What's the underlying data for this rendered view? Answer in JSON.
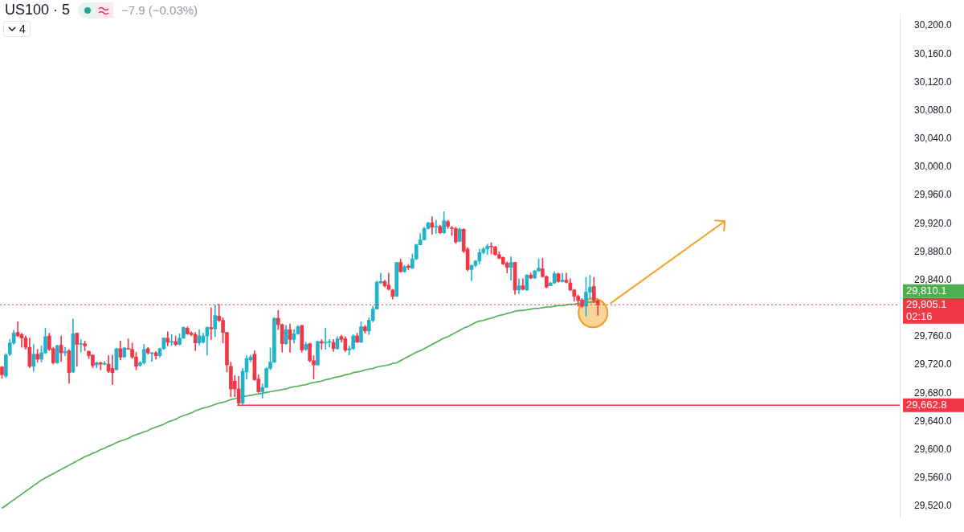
{
  "chart_data": {
    "type": "candlestick",
    "title": "US100 · 5",
    "categories": [
      null,
      null,
      null,
      null,
      null,
      null,
      null,
      null,
      null,
      null,
      null,
      null,
      null,
      null,
      null,
      null,
      null,
      null,
      null,
      null,
      null,
      null,
      null,
      null,
      null,
      null,
      null,
      null,
      null,
      null,
      null,
      null,
      null,
      null,
      null,
      null,
      null,
      null,
      null,
      null,
      null,
      null,
      null,
      null,
      null,
      null,
      null,
      null,
      null,
      null,
      null,
      null,
      null,
      null,
      null,
      null,
      null,
      null,
      null,
      null,
      null,
      null,
      null,
      null,
      null,
      null,
      null,
      null,
      null,
      null,
      null,
      null,
      null,
      null,
      null,
      null,
      null,
      null,
      null,
      null,
      null,
      null,
      null,
      null,
      null,
      null,
      null,
      null,
      null,
      null,
      null,
      null,
      null,
      null,
      null,
      null,
      null,
      null,
      null,
      null,
      null,
      null,
      null,
      null,
      null,
      null,
      null,
      null,
      null,
      null,
      null,
      null,
      null,
      null,
      null,
      null,
      null,
      null,
      null,
      null,
      null,
      null,
      null,
      null,
      null,
      null,
      null,
      null,
      null,
      null,
      null,
      null,
      null,
      null,
      null,
      null,
      null,
      null,
      null,
      null,
      null,
      null,
      null,
      null,
      null,
      null,
      null,
      null,
      null,
      null,
      null,
      null,
      null,
      null,
      null,
      null,
      null,
      null,
      null,
      null,
      null,
      null,
      null,
      null,
      null,
      null,
      null,
      null,
      null,
      null,
      null,
      null,
      null,
      null,
      null,
      null,
      null,
      null,
      null,
      null,
      null,
      null,
      null,
      null,
      null,
      null,
      null,
      null,
      null,
      null,
      null,
      null,
      null,
      null,
      null,
      null,
      null,
      null,
      null,
      null,
      null,
      null,
      null,
      null,
      null,
      null,
      null,
      null,
      null,
      null,
      null,
      null,
      null,
      null,
      null,
      null,
      null,
      null,
      null,
      null,
      null,
      null,
      null,
      null,
      null,
      null,
      null,
      null
    ],
    "series": [
      {
        "ohlc": [
          [
            29717,
            29718,
            29701,
            29706
          ],
          [
            29704,
            29736,
            29702,
            29734
          ],
          [
            29735,
            29756,
            29733,
            29751
          ],
          [
            29751,
            29769,
            29749,
            29765
          ],
          [
            29766,
            29781,
            29760,
            29761
          ],
          [
            29763,
            29765,
            29745,
            29758
          ],
          [
            29758,
            29761,
            29742,
            29745
          ],
          [
            29745,
            29758,
            29716,
            29718
          ],
          [
            29718,
            29749,
            29711,
            29735
          ],
          [
            29735,
            29742,
            29724,
            29728
          ],
          [
            29728,
            29747,
            29724,
            29737
          ],
          [
            29737,
            29772,
            29736,
            29760
          ],
          [
            29761,
            29765,
            29740,
            29742
          ],
          [
            29743,
            29745,
            29721,
            29723
          ],
          [
            29723,
            29748,
            29722,
            29747
          ],
          [
            29748,
            29761,
            29725,
            29737
          ],
          [
            29737,
            29745,
            29733,
            29739
          ],
          [
            29740,
            29742,
            29694,
            29709
          ],
          [
            29710,
            29785,
            29709,
            29764
          ],
          [
            29765,
            29765,
            29718,
            29749
          ],
          [
            29749,
            29756,
            29738,
            29750
          ],
          [
            29750,
            29754,
            29740,
            29747
          ],
          [
            29739,
            29740,
            29729,
            29733
          ],
          [
            29734,
            29734,
            29716,
            29719
          ],
          [
            29720,
            29724,
            29716,
            29723
          ],
          [
            29723,
            29724,
            29713,
            29721
          ],
          [
            29721,
            29725,
            29720,
            29722
          ],
          [
            29721,
            29733,
            29709,
            29711
          ],
          [
            29715,
            29734,
            29692,
            29709
          ],
          [
            29713,
            29744,
            29713,
            29743
          ],
          [
            29743,
            29754,
            29727,
            29731
          ],
          [
            29731,
            29745,
            29731,
            29744
          ],
          [
            29743,
            29757,
            29742,
            29742
          ],
          [
            29742,
            29751,
            29729,
            29731
          ],
          [
            29731,
            29738,
            29713,
            29718
          ],
          [
            29719,
            29725,
            29718,
            29723
          ],
          [
            29723,
            29749,
            29721,
            29742
          ],
          [
            29743,
            29745,
            29735,
            29737
          ],
          [
            29736,
            29738,
            29725,
            29737
          ],
          [
            29737,
            29739,
            29728,
            29733
          ],
          [
            29733,
            29744,
            29731,
            29743
          ],
          [
            29743,
            29758,
            29742,
            29758
          ],
          [
            29758,
            29767,
            29747,
            29752
          ],
          [
            29752,
            29763,
            29747,
            29753
          ],
          [
            29753,
            29761,
            29747,
            29749
          ],
          [
            29749,
            29764,
            29748,
            29758
          ],
          [
            29758,
            29774,
            29757,
            29773
          ],
          [
            29772,
            29774,
            29763,
            29764
          ],
          [
            29765,
            29767,
            29761,
            29763
          ],
          [
            29763,
            29766,
            29740,
            29751
          ],
          [
            29751,
            29770,
            29748,
            29761
          ],
          [
            29752,
            29765,
            29751,
            29761
          ],
          [
            29761,
            29774,
            29734,
            29773
          ],
          [
            29773,
            29801,
            29756,
            29771
          ],
          [
            29771,
            29805,
            29760,
            29790
          ],
          [
            29789,
            29806,
            29781,
            29783
          ],
          [
            29783,
            29787,
            29751,
            29766
          ],
          [
            29766,
            29766,
            29710,
            29720
          ],
          [
            29718,
            29724,
            29675,
            29686
          ],
          [
            29697,
            29705,
            29675,
            29686
          ],
          [
            29686,
            29704,
            29662.8,
            29666
          ],
          [
            29666,
            29715,
            29663,
            29711
          ],
          [
            29710,
            29733,
            29700,
            29729
          ],
          [
            29727,
            29734,
            29724,
            29731
          ],
          [
            29735,
            29740,
            29698,
            29699
          ],
          [
            29700,
            29706,
            29681,
            29682
          ],
          [
            29682,
            29693,
            29673,
            29688
          ],
          [
            29688,
            29716,
            29688,
            29715
          ],
          [
            29715,
            29744,
            29713,
            29724
          ],
          [
            29724,
            29787,
            29723,
            29786
          ],
          [
            29786,
            29797,
            29770,
            29777
          ],
          [
            29777,
            29778,
            29738,
            29750
          ],
          [
            29750,
            29776,
            29749,
            29770
          ],
          [
            29770,
            29778,
            29738,
            29756
          ],
          [
            29756,
            29770,
            29751,
            29764
          ],
          [
            29764,
            29776,
            29763,
            29774
          ],
          [
            29776,
            29776,
            29738,
            29741
          ],
          [
            29742,
            29752,
            29740,
            29749
          ],
          [
            29750,
            29751,
            29724,
            29726
          ],
          [
            29726,
            29733,
            29700,
            29720
          ],
          [
            29720,
            29754,
            29719,
            29753
          ],
          [
            29753,
            29756,
            29742,
            29751
          ],
          [
            29751,
            29772,
            29742,
            29752
          ],
          [
            29752,
            29756,
            29745,
            29753
          ],
          [
            29752,
            29756,
            29739,
            29743
          ],
          [
            29743,
            29760,
            29742,
            29757
          ],
          [
            29760,
            29762,
            29752,
            29756
          ],
          [
            29757,
            29760,
            29739,
            29741
          ],
          [
            29741,
            29747,
            29734,
            29743
          ],
          [
            29743,
            29763,
            29742,
            29761
          ],
          [
            29761,
            29765,
            29752,
            29752
          ],
          [
            29752,
            29781,
            29752,
            29774
          ],
          [
            29774,
            29776,
            29765,
            29768
          ],
          [
            29768,
            29787,
            29763,
            29783
          ],
          [
            29783,
            29803,
            29781,
            29799
          ],
          [
            29799,
            29839,
            29799,
            29837
          ],
          [
            29836,
            29850,
            29835,
            29838
          ],
          [
            29838,
            29840,
            29830,
            29832
          ],
          [
            29833,
            29850,
            29826,
            29827
          ],
          [
            29826,
            29827,
            29813,
            29817
          ],
          [
            29817,
            29865,
            29817,
            29865
          ],
          [
            29865,
            29870,
            29851,
            29852
          ],
          [
            29852,
            29861,
            29851,
            29859
          ],
          [
            29860,
            29862,
            29855,
            29858
          ],
          [
            29857,
            29877,
            29856,
            29870
          ],
          [
            29870,
            29891,
            29869,
            29890
          ],
          [
            29890,
            29906,
            29890,
            29897
          ],
          [
            29897,
            29915,
            29897,
            29913
          ],
          [
            29913,
            29922,
            29912,
            29921
          ],
          [
            29921,
            29930,
            29905,
            29915
          ],
          [
            29915,
            29925,
            29906,
            29916
          ],
          [
            29916,
            29918,
            29906,
            29907
          ],
          [
            29907,
            29937,
            29906,
            29924
          ],
          [
            29923,
            29925,
            29913,
            29916
          ],
          [
            29914,
            29916,
            29903,
            29913
          ],
          [
            29913,
            29915,
            29892,
            29894
          ],
          [
            29895,
            29914,
            29894,
            29912
          ],
          [
            29912,
            29913,
            29879,
            29881
          ],
          [
            29884,
            29886,
            29853,
            29855
          ],
          [
            29855,
            29861,
            29839,
            29861
          ],
          [
            29861,
            29868,
            29859,
            29867
          ],
          [
            29867,
            29884,
            29863,
            29879
          ],
          [
            29879,
            29886,
            29877,
            29884
          ],
          [
            29884,
            29891,
            29876,
            29888
          ],
          [
            29888,
            29893,
            29877,
            29887
          ],
          [
            29887,
            29888,
            29875,
            29876
          ],
          [
            29876,
            29880,
            29870,
            29871
          ],
          [
            29872,
            29873,
            29862,
            29863
          ],
          [
            29864,
            29866,
            29850,
            29858
          ],
          [
            29858,
            29873,
            29840,
            29865
          ],
          [
            29865,
            29865,
            29820,
            29826
          ],
          [
            29826,
            29842,
            29821,
            29832
          ],
          [
            29832,
            29842,
            29826,
            29827
          ],
          [
            29826,
            29848,
            29825,
            29847
          ],
          [
            29847,
            29850,
            29842,
            29843
          ],
          [
            29843,
            29854,
            29842,
            29853
          ],
          [
            29853,
            29870,
            29852,
            29857
          ],
          [
            29856,
            29871,
            29844,
            29845
          ],
          [
            29845,
            29846,
            29829,
            29830
          ],
          [
            29832,
            29837,
            29832,
            29836
          ],
          [
            29836,
            29852,
            29835,
            29849
          ],
          [
            29849,
            29850,
            29837,
            29838
          ],
          [
            29838,
            29850,
            29837,
            29840
          ],
          [
            29840,
            29850,
            29836,
            29837
          ],
          [
            29836,
            29842,
            29825,
            29826
          ],
          [
            29826,
            29827,
            29810,
            29817
          ],
          [
            29817,
            29819,
            29803,
            29811
          ],
          [
            29812,
            29814,
            29801,
            29803
          ],
          [
            29803,
            29844,
            29789,
            29823
          ],
          [
            29823,
            29847,
            29814,
            29830
          ],
          [
            29831,
            29844,
            29808,
            29811
          ],
          [
            29811,
            29812,
            29790,
            29805.1
          ],
          null,
          null,
          null,
          null,
          null,
          null,
          null,
          null,
          null,
          null,
          null,
          null,
          null,
          null,
          null,
          null,
          null,
          null,
          null,
          null,
          null,
          null,
          null,
          null,
          null,
          null,
          null,
          null,
          null,
          null,
          null,
          null,
          null,
          null,
          null,
          null,
          null,
          null,
          null,
          null,
          null,
          null,
          null,
          null,
          null,
          null,
          null,
          null,
          null,
          null,
          null,
          null,
          null,
          null,
          null,
          null,
          null,
          null,
          null,
          null,
          null,
          null,
          null,
          null,
          null,
          null,
          null,
          null,
          null,
          null,
          null,
          null,
          null,
          null,
          null,
          null
        ],
        "colors": [
          "#f23645",
          "#22b3cc",
          "#22b3cc",
          "#22b3cc",
          "#f23645",
          "#f23645",
          "#f23645",
          "#f23645",
          "#22b3cc",
          "#f23645",
          "#22b3cc",
          "#22b3cc",
          "#f23645",
          "#f23645",
          "#22b3cc",
          "#f23645",
          "#22b3cc",
          "#f23645",
          "#22b3cc",
          "#f23645",
          "#22b3cc",
          "#f23645",
          "#f23645",
          "#f23645",
          "#22b3cc",
          "#f23645",
          "#22b3cc",
          "#f23645",
          "#f23645",
          "#22b3cc",
          "#f23645",
          "#22b3cc",
          "#f23645",
          "#f23645",
          "#f23645",
          "#22b3cc",
          "#22b3cc",
          "#f23645",
          "#22b3cc",
          "#f23645",
          "#22b3cc",
          "#22b3cc",
          "#f23645",
          "#22b3cc",
          "#f23645",
          "#22b3cc",
          "#22b3cc",
          "#f23645",
          "#f23645",
          "#f23645",
          "#22b3cc",
          "#22b3cc",
          "#22b3cc",
          "#f23645",
          "#22b3cc",
          "#f23645",
          "#f23645",
          "#f23645",
          "#f23645",
          "#f23645",
          "#f23645",
          "#22b3cc",
          "#22b3cc",
          "#22b3cc",
          "#f23645",
          "#f23645",
          "#22b3cc",
          "#22b3cc",
          "#22b3cc",
          "#22b3cc",
          "#f23645",
          "#f23645",
          "#22b3cc",
          "#f23645",
          "#22b3cc",
          "#22b3cc",
          "#f23645",
          "#22b3cc",
          "#f23645",
          "#f23645",
          "#22b3cc",
          "#f23645",
          "#22b3cc",
          "#22b3cc",
          "#f23645",
          "#22b3cc",
          "#f23645",
          "#f23645",
          "#22b3cc",
          "#22b3cc",
          "#f23645",
          "#22b3cc",
          "#f23645",
          "#22b3cc",
          "#22b3cc",
          "#22b3cc",
          "#22b3cc",
          "#f23645",
          "#f23645",
          "#f23645",
          "#22b3cc",
          "#f23645",
          "#22b3cc",
          "#f23645",
          "#22b3cc",
          "#22b3cc",
          "#22b3cc",
          "#22b3cc",
          "#22b3cc",
          "#f23645",
          "#22b3cc",
          "#f23645",
          "#22b3cc",
          "#f23645",
          "#f23645",
          "#f23645",
          "#22b3cc",
          "#f23645",
          "#f23645",
          "#22b3cc",
          "#22b3cc",
          "#22b3cc",
          "#22b3cc",
          "#22b3cc",
          "#f23645",
          "#f23645",
          "#f23645",
          "#f23645",
          "#f23645",
          "#22b3cc",
          "#f23645",
          "#22b3cc",
          "#f23645",
          "#22b3cc",
          "#f23645",
          "#22b3cc",
          "#22b3cc",
          "#f23645",
          "#f23645",
          "#22b3cc",
          "#22b3cc",
          "#f23645",
          "#22b3cc",
          "#f23645",
          "#f23645",
          "#f23645",
          "#f23645",
          "#f23645",
          "#22b3cc",
          "#22b3cc",
          "#f23645",
          "#f23645",
          null,
          null,
          null,
          null,
          null,
          null,
          null,
          null,
          null,
          null,
          null,
          null,
          null,
          null,
          null,
          null,
          null,
          null,
          null,
          null,
          null,
          null,
          null,
          null,
          null,
          null,
          null,
          null,
          null,
          null,
          null,
          null,
          null,
          null,
          null,
          null,
          null,
          null,
          null,
          null,
          null,
          null,
          null,
          null,
          null,
          null,
          null,
          null,
          null,
          null,
          null,
          null,
          null,
          null,
          null,
          null,
          null,
          null,
          null,
          null,
          null,
          null,
          null,
          null,
          null,
          null,
          null,
          null,
          null,
          null,
          null,
          null,
          null,
          null,
          null,
          null
        ]
      },
      {
        "type": "line",
        "color": "#4caf50",
        "values": [
          29517,
          29521,
          29525,
          29529,
          29533,
          29537,
          29541,
          29545,
          29549,
          29553,
          29557,
          29560,
          29563,
          29566,
          29569,
          29572,
          29575,
          29578,
          29581,
          29584,
          29587,
          29590,
          29592,
          29595,
          29597,
          29600,
          29602,
          29605,
          29607,
          29610,
          29612,
          29614,
          29616,
          29619,
          29621,
          29623,
          29625,
          29627,
          29630,
          29632,
          29634,
          29636,
          29639,
          29641,
          29643,
          29646,
          29648,
          29650,
          29652,
          29655,
          29657,
          29659,
          29660,
          29662,
          29664,
          29666,
          29667,
          29669,
          29671,
          29672,
          29674,
          29675,
          29676,
          29677,
          29678,
          29679,
          29680,
          29681,
          29682,
          29683,
          29684,
          29685,
          29686,
          29688,
          29689,
          29690,
          29691,
          29692,
          29694,
          29695,
          29696,
          29697,
          29699,
          29700,
          29702,
          29703,
          29704,
          29706,
          29707,
          29709,
          29710,
          29711,
          29713,
          29714,
          29715,
          29717,
          29718,
          29719,
          29720,
          29722,
          29723,
          29726,
          29729,
          29732,
          29735,
          29738,
          29740,
          29743,
          29746,
          29749,
          29752,
          29755,
          29758,
          29760,
          29763,
          29766,
          29769,
          29772,
          29774,
          29777,
          29780,
          29782,
          29783,
          29785,
          29786,
          29788,
          29790,
          29791,
          29793,
          29794,
          29796,
          29797,
          29797,
          29798,
          29799,
          29800,
          29800,
          29801,
          29802,
          29802,
          29803,
          29804,
          29804,
          29805,
          29806,
          29806,
          29807,
          29807,
          29808,
          29809,
          29809,
          29810,
          null,
          null,
          null,
          null,
          null,
          null,
          null,
          null,
          null,
          null,
          null,
          null,
          null,
          null,
          null,
          null,
          null,
          null,
          null,
          null,
          null,
          null,
          null,
          null,
          null,
          null,
          null,
          null,
          null,
          null,
          null,
          null,
          null,
          null,
          null,
          null,
          null,
          null,
          null,
          null,
          null,
          null,
          null,
          null,
          null,
          null,
          null,
          null,
          null,
          null,
          null,
          null,
          null,
          null,
          null,
          null,
          null,
          null,
          null,
          null,
          null,
          null,
          null,
          null,
          null,
          null,
          null,
          null,
          null,
          null,
          null,
          null,
          null,
          null,
          null,
          null
        ]
      }
    ],
    "ylim": [
      29503,
      30217
    ],
    "yticks": [
      {
        "value": 29520,
        "label": "29,520.0"
      },
      {
        "value": 29560,
        "label": "29,560.0"
      },
      {
        "value": 29600,
        "label": "29,600.0"
      },
      {
        "value": 29640,
        "label": "29,640.0"
      },
      {
        "value": 29680,
        "label": "29,680.0"
      },
      {
        "value": 29720,
        "label": "29,720.0"
      },
      {
        "value": 29760,
        "label": "29,760.0"
      },
      {
        "value": 29840,
        "label": "29,840.0"
      },
      {
        "value": 29880,
        "label": "29,880.0"
      },
      {
        "value": 29920,
        "label": "29,920.0"
      },
      {
        "value": 29960,
        "label": "29,960.0"
      },
      {
        "value": 30000,
        "label": "30,000.0"
      },
      {
        "value": 30040,
        "label": "30,040.0"
      },
      {
        "value": 30080,
        "label": "30,080.0"
      },
      {
        "value": 30120,
        "label": "30,120.0"
      },
      {
        "value": 30160,
        "label": "30,160.0"
      },
      {
        "value": 30200,
        "label": "30,200.0"
      }
    ],
    "tick_labels": "y",
    "grid": false,
    "legend": false,
    "marker": "none",
    "ref_lines": [
      {
        "axis": "y",
        "value": 29805.1,
        "label": "29,805.1",
        "color": "#f23645",
        "line_style": "dotted"
      },
      {
        "axis": "y",
        "value": 29662.8,
        "label": "29,662.8",
        "color": "#f23645",
        "line_style": "solid"
      }
    ],
    "annotations": [
      "−7.9 (−0.03%)",
      "4",
      "29,810.1",
      "02:16"
    ]
  }
}
